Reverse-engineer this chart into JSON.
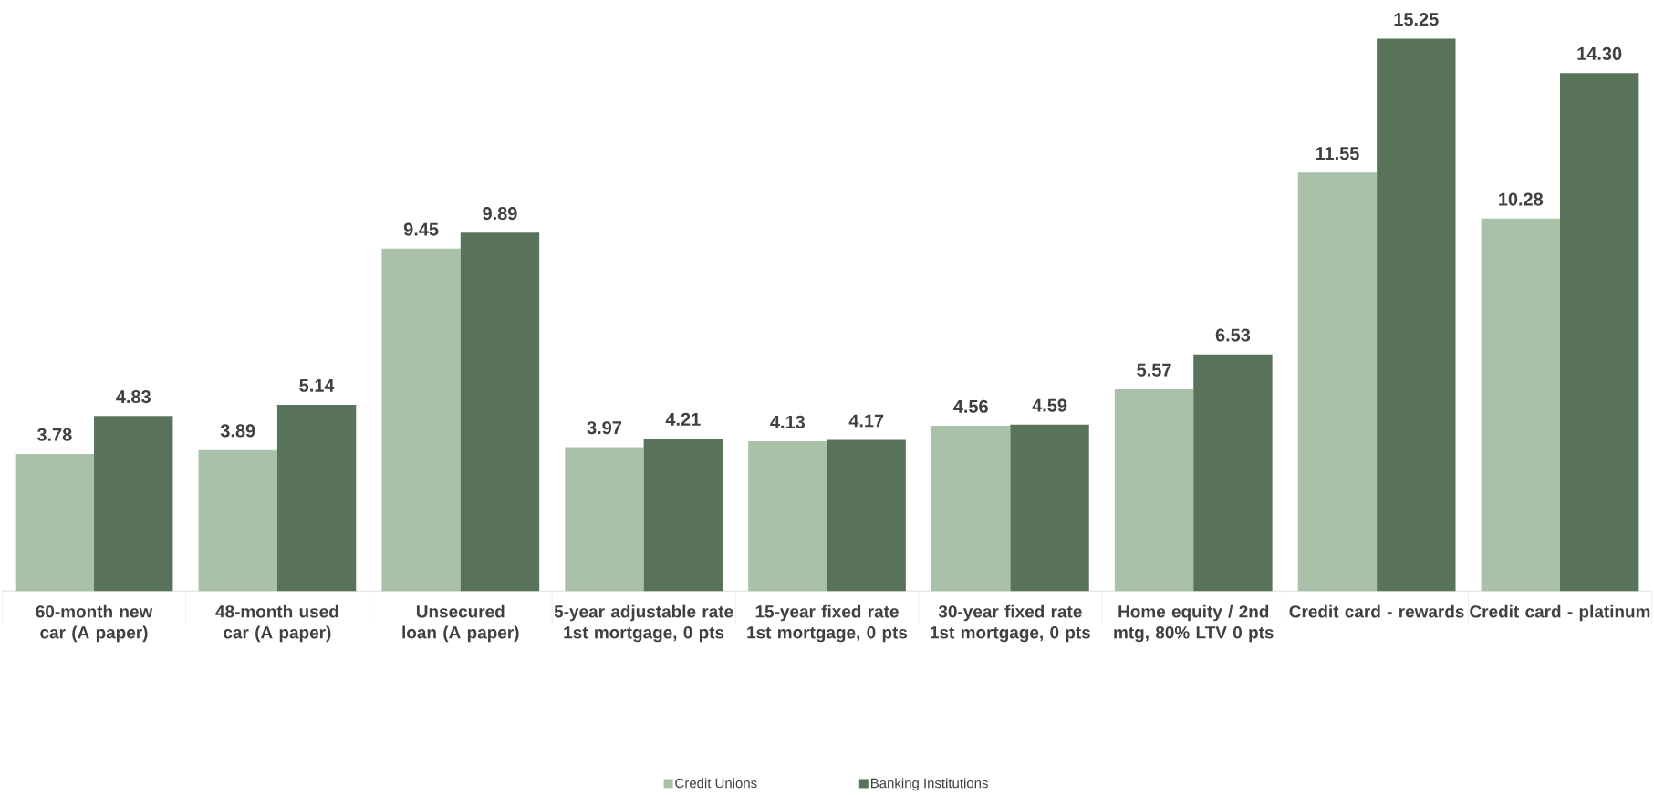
{
  "chart_data": {
    "type": "bar",
    "categories": [
      "60-month new car (A paper)",
      "48-month used car (A paper)",
      "Unsecured loan (A paper)",
      "5-year adjustable rate 1st mortgage, 0 pts",
      "15-year fixed rate 1st mortgage, 0 pts",
      "30-year fixed rate 1st mortgage, 0 pts",
      "Home equity / 2nd mtg, 80% LTV 0 pts",
      "Credit card - rewards",
      "Credit card - platinum"
    ],
    "series": [
      {
        "name": "Credit Unions",
        "color": "#a8c1a8",
        "values": [
          3.78,
          3.89,
          9.45,
          3.97,
          4.13,
          4.56,
          5.57,
          11.55,
          10.28
        ],
        "value_labels": [
          "3.78",
          "3.89",
          "9.45",
          "3.97",
          "4.13",
          "4.56",
          "5.57",
          "11.55",
          "10.28"
        ]
      },
      {
        "name": "Banking Institutions",
        "color": "#58735a",
        "values": [
          4.83,
          5.14,
          9.89,
          4.21,
          4.17,
          4.59,
          6.53,
          15.25,
          14.3
        ],
        "value_labels": [
          "4.83",
          "5.14",
          "9.89",
          "4.21",
          "4.17",
          "4.59",
          "6.53",
          "15.25",
          "14.30"
        ]
      }
    ],
    "legend": "bottom"
  }
}
